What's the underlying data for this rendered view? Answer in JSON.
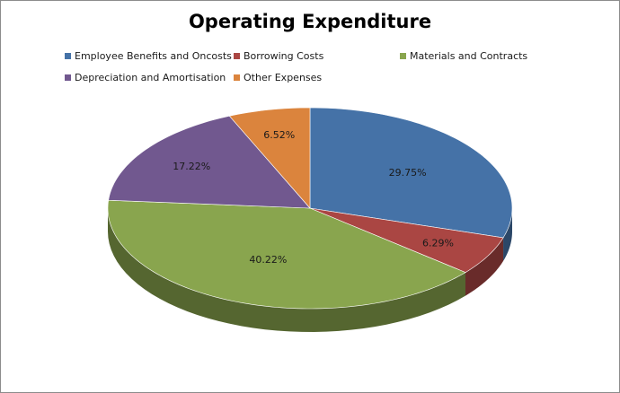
{
  "chart_data": {
    "type": "pie",
    "title": "Operating Expenditure",
    "categories": [
      "Employee Benefits and Oncosts",
      "Borrowing Costs",
      "Materials and Contracts",
      "Depreciation and Amortisation",
      "Other Expenses"
    ],
    "values": [
      29.75,
      6.29,
      40.22,
      17.22,
      6.52
    ],
    "data_labels": [
      "29.75%",
      "6.29%",
      "40.22%",
      "17.22%",
      "6.52%"
    ],
    "colors": [
      "#4572A7",
      "#AA4643",
      "#89A54E",
      "#71588F",
      "#DB843D"
    ],
    "legend_position": "top",
    "style": "3d"
  }
}
